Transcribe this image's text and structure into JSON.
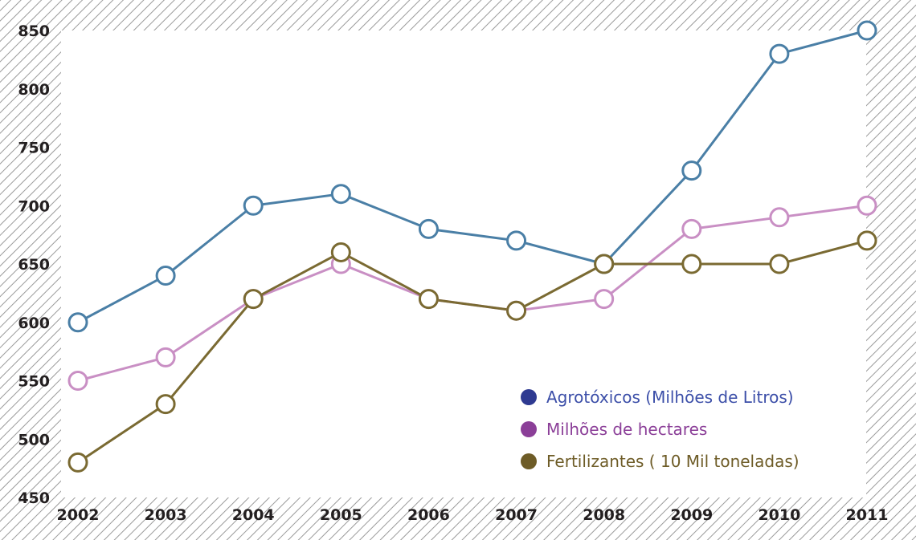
{
  "chart_data": {
    "type": "line",
    "x": [
      "2002",
      "2003",
      "2004",
      "2005",
      "2006",
      "2007",
      "2008",
      "2009",
      "2010",
      "2011"
    ],
    "ylim": [
      450,
      850
    ],
    "yticks": [
      450,
      500,
      550,
      600,
      650,
      700,
      750,
      800,
      850
    ],
    "grid": false,
    "legend_position": "bottom-right",
    "background": "hatched border",
    "series": [
      {
        "name": "Agrotóxicos (Milhões de Litros)",
        "color": "#4a7fa6",
        "dot_color": "#2e3a91",
        "text_color": "#3b4ea8",
        "values": [
          600,
          640,
          700,
          710,
          680,
          670,
          650,
          730,
          830,
          850
        ]
      },
      {
        "name": "Milhões de hectares",
        "color": "#c98fc4",
        "dot_color": "#8b3f98",
        "text_color": "#8b3f98",
        "values": [
          550,
          570,
          620,
          650,
          620,
          610,
          620,
          680,
          690,
          700
        ]
      },
      {
        "name": "Fertilizantes ( 10 Mil toneladas)",
        "color": "#7a6a32",
        "dot_color": "#6e5c27",
        "text_color": "#6e5c27",
        "values": [
          480,
          530,
          620,
          660,
          620,
          610,
          650,
          650,
          650,
          670
        ]
      }
    ]
  }
}
